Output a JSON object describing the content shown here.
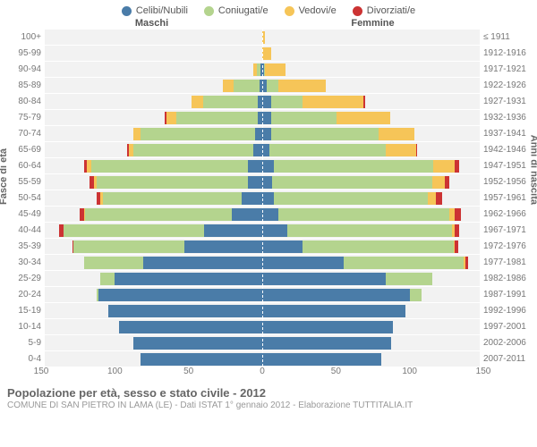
{
  "legend": {
    "items": [
      {
        "label": "Celibi/Nubili",
        "color": "#4a7ca8"
      },
      {
        "label": "Coniugati/e",
        "color": "#b4d48e"
      },
      {
        "label": "Vedovi/e",
        "color": "#f6c558"
      },
      {
        "label": "Divorziati/e",
        "color": "#cc3333"
      }
    ]
  },
  "headers": {
    "male": "Maschi",
    "female": "Femmine"
  },
  "axis_titles": {
    "left": "Fasce di età",
    "right": "Anni di nascita"
  },
  "colors": {
    "celibi": "#4a7ca8",
    "coniugati": "#b4d48e",
    "vedovi": "#f6c558",
    "divorziati": "#cc3333",
    "plot_bg": "#f2f2f2",
    "grid": "#dddddd"
  },
  "x_axis": {
    "max": 150,
    "ticks": [
      150,
      100,
      50,
      0,
      50,
      100,
      150
    ]
  },
  "rows": [
    {
      "age": "100+",
      "birth": "≤ 1911",
      "m": {
        "cel": 0,
        "con": 0,
        "ved": 0,
        "div": 0
      },
      "f": {
        "cel": 0,
        "con": 0,
        "ved": 2,
        "div": 0
      }
    },
    {
      "age": "95-99",
      "birth": "1912-1916",
      "m": {
        "cel": 0,
        "con": 0,
        "ved": 0,
        "div": 0
      },
      "f": {
        "cel": 0,
        "con": 0,
        "ved": 6,
        "div": 0
      }
    },
    {
      "age": "90-94",
      "birth": "1917-1921",
      "m": {
        "cel": 1,
        "con": 3,
        "ved": 2,
        "div": 0
      },
      "f": {
        "cel": 1,
        "con": 1,
        "ved": 14,
        "div": 0
      }
    },
    {
      "age": "85-89",
      "birth": "1922-1926",
      "m": {
        "cel": 2,
        "con": 18,
        "ved": 7,
        "div": 0
      },
      "f": {
        "cel": 3,
        "con": 8,
        "ved": 33,
        "div": 0
      }
    },
    {
      "age": "80-84",
      "birth": "1927-1931",
      "m": {
        "cel": 3,
        "con": 38,
        "ved": 8,
        "div": 0
      },
      "f": {
        "cel": 6,
        "con": 22,
        "ved": 42,
        "div": 1
      }
    },
    {
      "age": "75-79",
      "birth": "1932-1936",
      "m": {
        "cel": 3,
        "con": 56,
        "ved": 7,
        "div": 1
      },
      "f": {
        "cel": 6,
        "con": 45,
        "ved": 37,
        "div": 0
      }
    },
    {
      "age": "70-74",
      "birth": "1937-1941",
      "m": {
        "cel": 5,
        "con": 79,
        "ved": 5,
        "div": 0
      },
      "f": {
        "cel": 6,
        "con": 74,
        "ved": 25,
        "div": 0
      }
    },
    {
      "age": "65-69",
      "birth": "1942-1946",
      "m": {
        "cel": 6,
        "con": 83,
        "ved": 3,
        "div": 1
      },
      "f": {
        "cel": 5,
        "con": 80,
        "ved": 21,
        "div": 1
      }
    },
    {
      "age": "60-64",
      "birth": "1947-1951",
      "m": {
        "cel": 10,
        "con": 108,
        "ved": 3,
        "div": 2
      },
      "f": {
        "cel": 8,
        "con": 110,
        "ved": 15,
        "div": 3
      }
    },
    {
      "age": "55-59",
      "birth": "1952-1956",
      "m": {
        "cel": 10,
        "con": 104,
        "ved": 2,
        "div": 3
      },
      "f": {
        "cel": 7,
        "con": 110,
        "ved": 9,
        "div": 3
      }
    },
    {
      "age": "50-54",
      "birth": "1957-1961",
      "m": {
        "cel": 14,
        "con": 96,
        "ved": 2,
        "div": 2
      },
      "f": {
        "cel": 8,
        "con": 106,
        "ved": 6,
        "div": 4
      }
    },
    {
      "age": "45-49",
      "birth": "1962-1966",
      "m": {
        "cel": 21,
        "con": 101,
        "ved": 1,
        "div": 3
      },
      "f": {
        "cel": 11,
        "con": 118,
        "ved": 4,
        "div": 4
      }
    },
    {
      "age": "40-44",
      "birth": "1967-1971",
      "m": {
        "cel": 40,
        "con": 97,
        "ved": 0,
        "div": 3
      },
      "f": {
        "cel": 17,
        "con": 114,
        "ved": 2,
        "div": 3
      }
    },
    {
      "age": "35-39",
      "birth": "1972-1976",
      "m": {
        "cel": 54,
        "con": 76,
        "ved": 0,
        "div": 1
      },
      "f": {
        "cel": 28,
        "con": 104,
        "ved": 1,
        "div": 2
      }
    },
    {
      "age": "30-34",
      "birth": "1977-1981",
      "m": {
        "cel": 82,
        "con": 41,
        "ved": 0,
        "div": 0
      },
      "f": {
        "cel": 56,
        "con": 83,
        "ved": 1,
        "div": 2
      }
    },
    {
      "age": "25-29",
      "birth": "1982-1986",
      "m": {
        "cel": 102,
        "con": 10,
        "ved": 0,
        "div": 0
      },
      "f": {
        "cel": 85,
        "con": 32,
        "ved": 0,
        "div": 0
      }
    },
    {
      "age": "20-24",
      "birth": "1987-1991",
      "m": {
        "cel": 113,
        "con": 1,
        "ved": 0,
        "div": 0
      },
      "f": {
        "cel": 102,
        "con": 8,
        "ved": 0,
        "div": 0
      }
    },
    {
      "age": "15-19",
      "birth": "1992-1996",
      "m": {
        "cel": 106,
        "con": 0,
        "ved": 0,
        "div": 0
      },
      "f": {
        "cel": 99,
        "con": 0,
        "ved": 0,
        "div": 0
      }
    },
    {
      "age": "10-14",
      "birth": "1997-2001",
      "m": {
        "cel": 99,
        "con": 0,
        "ved": 0,
        "div": 0
      },
      "f": {
        "cel": 90,
        "con": 0,
        "ved": 0,
        "div": 0
      }
    },
    {
      "age": "5-9",
      "birth": "2002-2006",
      "m": {
        "cel": 89,
        "con": 0,
        "ved": 0,
        "div": 0
      },
      "f": {
        "cel": 89,
        "con": 0,
        "ved": 0,
        "div": 0
      }
    },
    {
      "age": "0-4",
      "birth": "2007-2011",
      "m": {
        "cel": 84,
        "con": 0,
        "ved": 0,
        "div": 0
      },
      "f": {
        "cel": 82,
        "con": 0,
        "ved": 0,
        "div": 0
      }
    }
  ],
  "footer": {
    "title": "Popolazione per età, sesso e stato civile - 2012",
    "sub": "COMUNE DI SAN PIETRO IN LAMA (LE) - Dati ISTAT 1° gennaio 2012 - Elaborazione TUTTITALIA.IT"
  }
}
